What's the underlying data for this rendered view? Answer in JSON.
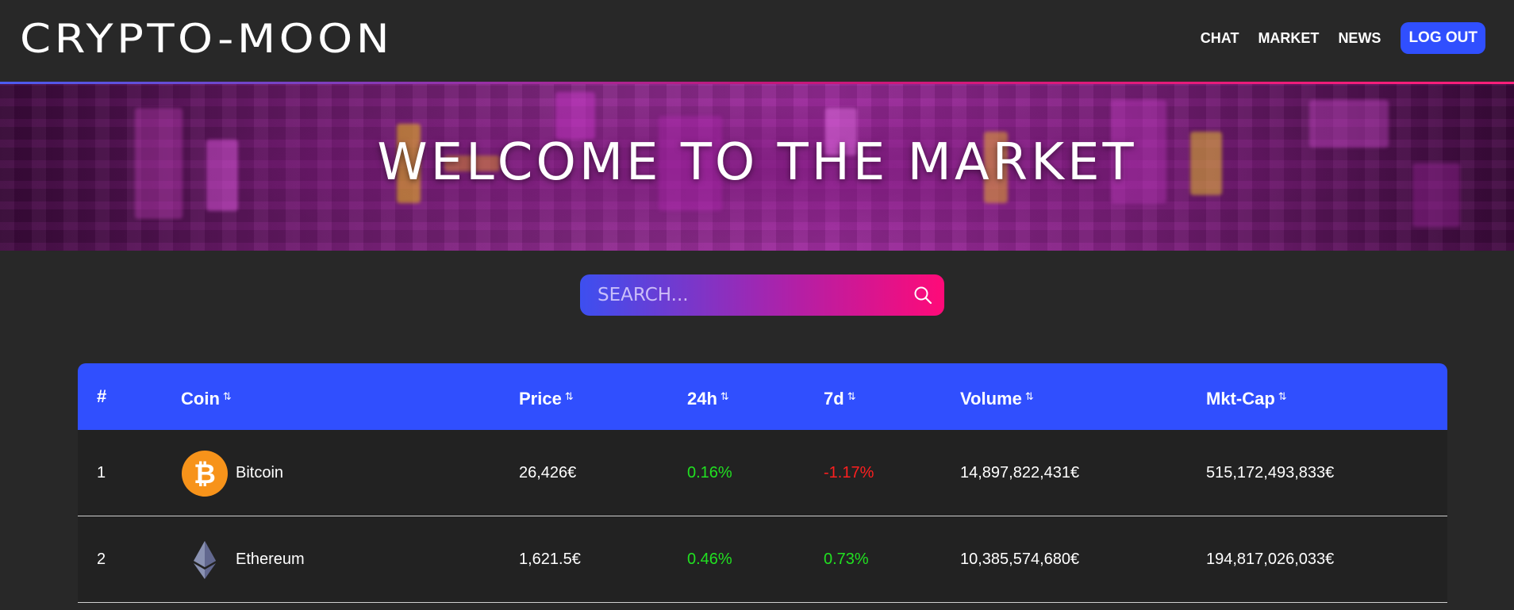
{
  "header": {
    "logo": "CRYPTO-MOON",
    "nav": [
      "CHAT",
      "MARKET",
      "NEWS"
    ],
    "logout_label": "LOG OUT",
    "accent_color": "#304ffe"
  },
  "banner": {
    "title": "WELCOME TO THE MARKET"
  },
  "search": {
    "placeholder": "SEARCH...",
    "icon": "search-icon"
  },
  "table": {
    "columns": [
      "#",
      "Coin",
      "Price",
      "24h",
      "7d",
      "Volume",
      "Mkt-Cap"
    ],
    "sort_icon": "sort-icon",
    "rows": [
      {
        "rank": "1",
        "name": "Bitcoin",
        "icon": "bitcoin-icon",
        "price": "26,426€",
        "change_24h": "0.16%",
        "change_7d": "-1.17%",
        "volume": "14,897,822,431€",
        "market_cap": "515,172,493,833€"
      },
      {
        "rank": "2",
        "name": "Ethereum",
        "icon": "ethereum-icon",
        "price": "1,621.5€",
        "change_24h": "0.46%",
        "change_7d": "0.73%",
        "volume": "10,385,574,680€",
        "market_cap": "194,817,026,033€"
      }
    ],
    "positive_color": "#21e021",
    "negative_color": "#ff1f1f"
  }
}
